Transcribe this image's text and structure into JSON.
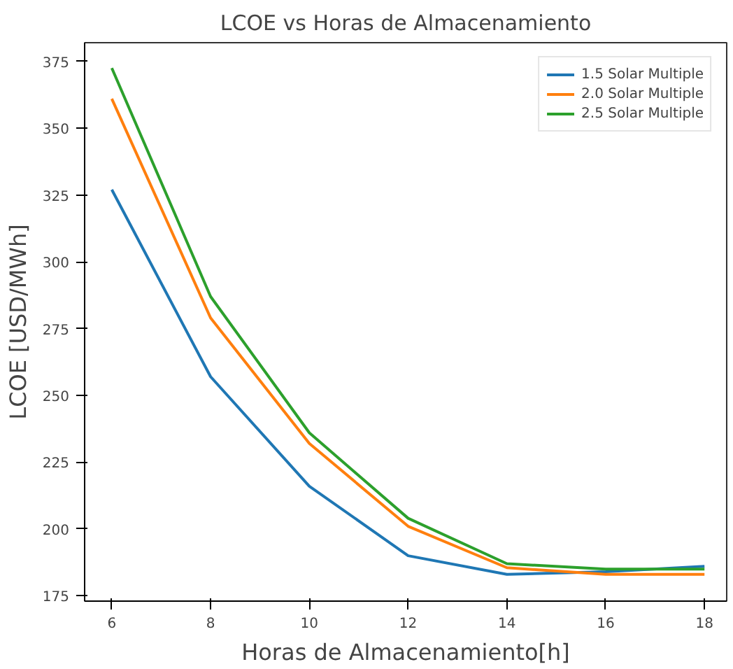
{
  "chart_data": {
    "type": "line",
    "title": "LCOE vs Horas de Almacenamiento",
    "xlabel": "Horas de Almacenamiento[h]",
    "ylabel": "LCOE [USD/MWh]",
    "x": [
      6,
      8,
      10,
      12,
      14,
      16,
      18
    ],
    "series": [
      {
        "name": "1.5 Solar Multiple",
        "color": "#1f77b4",
        "values": [
          327,
          257,
          216,
          190,
          183,
          184,
          186
        ]
      },
      {
        "name": "2.0 Solar Multiple",
        "color": "#ff7f0e",
        "values": [
          361,
          279,
          232,
          201,
          185.5,
          183,
          183
        ]
      },
      {
        "name": "2.5 Solar Multiple",
        "color": "#2ca02c",
        "values": [
          372.5,
          287,
          236,
          204,
          187,
          185,
          185
        ]
      }
    ],
    "xlim": [
      5.45,
      18.45
    ],
    "ylim": [
      173,
      382
    ],
    "xticks": [
      6,
      8,
      10,
      12,
      14,
      16,
      18
    ],
    "yticks": [
      175,
      200,
      225,
      250,
      275,
      300,
      325,
      350,
      375
    ],
    "legend": "top right",
    "grid": false,
    "marker": "none",
    "line_style": "solid"
  }
}
